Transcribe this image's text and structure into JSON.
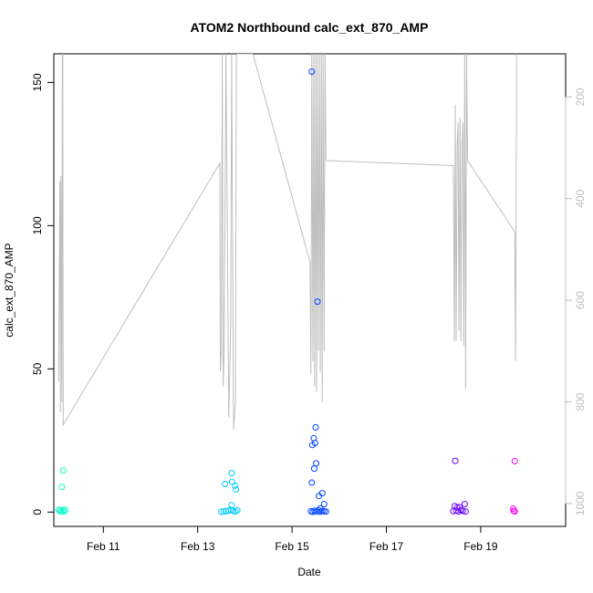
{
  "chart_data": {
    "type": "scatter",
    "title": "ATOM2 Northbound calc_ext_870_AMP",
    "xlabel": "Date",
    "ylabel": "calc_ext_870_AMP",
    "x_unit": "days in February",
    "xlim": [
      9.95,
      20.8
    ],
    "ylim": [
      -5,
      160
    ],
    "x_ticks": [
      {
        "v": 11,
        "label": "Feb 11"
      },
      {
        "v": 13,
        "label": "Feb 13"
      },
      {
        "v": 15,
        "label": "Feb 15"
      },
      {
        "v": 17,
        "label": "Feb 17"
      },
      {
        "v": 19,
        "label": "Feb 19"
      }
    ],
    "y_ticks": [
      0,
      50,
      100,
      150
    ],
    "y2_axis": {
      "label": "",
      "ticks": [
        200,
        400,
        600,
        800,
        1000
      ],
      "reversed": true,
      "lim": [
        115,
        1045
      ],
      "color": "#bebebe"
    },
    "points": [
      {
        "x": 10.15,
        "y": 14.5,
        "color": "#00ffcc"
      },
      {
        "x": 10.12,
        "y": 8.8,
        "color": "#00ffcc"
      },
      {
        "x": 10.05,
        "y": 0.8,
        "color": "#00ffcc"
      },
      {
        "x": 10.08,
        "y": 0.3,
        "color": "#00ffcc"
      },
      {
        "x": 10.1,
        "y": 0.6,
        "color": "#00ffcc"
      },
      {
        "x": 10.14,
        "y": 0.2,
        "color": "#00ffcc"
      },
      {
        "x": 10.17,
        "y": 0.9,
        "color": "#00ffcc"
      },
      {
        "x": 10.19,
        "y": 0.4,
        "color": "#00ffcc"
      },
      {
        "x": 13.72,
        "y": 13.6,
        "color": "#00ccff"
      },
      {
        "x": 13.58,
        "y": 9.8,
        "color": "#00ccff"
      },
      {
        "x": 13.73,
        "y": 10.5,
        "color": "#00ccff"
      },
      {
        "x": 13.79,
        "y": 9.2,
        "color": "#00ccff"
      },
      {
        "x": 13.81,
        "y": 7.9,
        "color": "#00ccff"
      },
      {
        "x": 13.72,
        "y": 2.4,
        "color": "#00ccff"
      },
      {
        "x": 13.5,
        "y": 0.1,
        "color": "#00ccff"
      },
      {
        "x": 13.55,
        "y": 0.2,
        "color": "#00ccff"
      },
      {
        "x": 13.6,
        "y": 0.3,
        "color": "#00ccff"
      },
      {
        "x": 13.65,
        "y": 0.5,
        "color": "#00ccff"
      },
      {
        "x": 13.7,
        "y": 0.8,
        "color": "#00ccff"
      },
      {
        "x": 13.75,
        "y": 0.4,
        "color": "#00ccff"
      },
      {
        "x": 13.8,
        "y": 0.2,
        "color": "#00ccff"
      },
      {
        "x": 13.84,
        "y": 0.6,
        "color": "#00ccff"
      },
      {
        "x": 15.42,
        "y": 153.8,
        "color": "#0044ff"
      },
      {
        "x": 15.54,
        "y": 73.5,
        "color": "#0044ff"
      },
      {
        "x": 15.5,
        "y": 29.6,
        "color": "#0044ff"
      },
      {
        "x": 15.46,
        "y": 25.8,
        "color": "#0044ff"
      },
      {
        "x": 15.49,
        "y": 24.1,
        "color": "#0044ff"
      },
      {
        "x": 15.43,
        "y": 23.4,
        "color": "#0044ff"
      },
      {
        "x": 15.51,
        "y": 17.0,
        "color": "#0044ff"
      },
      {
        "x": 15.47,
        "y": 15.2,
        "color": "#0044ff"
      },
      {
        "x": 15.42,
        "y": 10.3,
        "color": "#0044ff"
      },
      {
        "x": 15.64,
        "y": 6.6,
        "color": "#0044ff"
      },
      {
        "x": 15.57,
        "y": 5.6,
        "color": "#0044ff"
      },
      {
        "x": 15.68,
        "y": 2.8,
        "color": "#0044ff"
      },
      {
        "x": 15.6,
        "y": 1.3,
        "color": "#0044ff"
      },
      {
        "x": 15.4,
        "y": 0.3,
        "color": "#0044ff"
      },
      {
        "x": 15.44,
        "y": 0.1,
        "color": "#0044ff"
      },
      {
        "x": 15.48,
        "y": 0.5,
        "color": "#0044ff"
      },
      {
        "x": 15.52,
        "y": 0.2,
        "color": "#0044ff"
      },
      {
        "x": 15.56,
        "y": 0.6,
        "color": "#0044ff"
      },
      {
        "x": 15.6,
        "y": 0.1,
        "color": "#0044ff"
      },
      {
        "x": 15.64,
        "y": 0.4,
        "color": "#0044ff"
      },
      {
        "x": 15.68,
        "y": 0.3,
        "color": "#0044ff"
      },
      {
        "x": 15.72,
        "y": 0.2,
        "color": "#0044ff"
      },
      {
        "x": 18.46,
        "y": 17.9,
        "color": "#6600ff"
      },
      {
        "x": 18.66,
        "y": 2.8,
        "color": "#6600ff"
      },
      {
        "x": 18.45,
        "y": 2.1,
        "color": "#6600ff"
      },
      {
        "x": 18.55,
        "y": 1.8,
        "color": "#6600ff"
      },
      {
        "x": 18.5,
        "y": 1.6,
        "color": "#6600ff"
      },
      {
        "x": 18.42,
        "y": 0.3,
        "color": "#6600ff"
      },
      {
        "x": 18.48,
        "y": 0.5,
        "color": "#6600ff"
      },
      {
        "x": 18.53,
        "y": 0.2,
        "color": "#6600ff"
      },
      {
        "x": 18.58,
        "y": 0.7,
        "color": "#6600ff"
      },
      {
        "x": 18.62,
        "y": 0.4,
        "color": "#6600ff"
      },
      {
        "x": 18.68,
        "y": 0.2,
        "color": "#6600ff"
      },
      {
        "x": 19.72,
        "y": 17.8,
        "color": "#ff00ff"
      },
      {
        "x": 19.69,
        "y": 1.2,
        "color": "#ff00ff"
      },
      {
        "x": 19.7,
        "y": 0.4,
        "color": "#ff00ff"
      },
      {
        "x": 19.72,
        "y": 0.2,
        "color": "#ff00ff"
      }
    ],
    "secondary_line": {
      "color": "#bebebe",
      "x": [
        10.05,
        10.08,
        10.09,
        10.1,
        10.12,
        10.13,
        10.14,
        10.15,
        13.47,
        13.48,
        13.5,
        13.52,
        13.54,
        13.56,
        13.6,
        13.66,
        13.7,
        13.72,
        13.76,
        13.8,
        13.82,
        13.84,
        14.17,
        15.38,
        15.4,
        15.42,
        15.44,
        15.46,
        15.48,
        15.5,
        15.52,
        15.54,
        15.56,
        15.58,
        15.6,
        15.62,
        15.64,
        15.66,
        15.68,
        15.7,
        15.72,
        18.42,
        18.44,
        18.46,
        18.48,
        18.5,
        18.52,
        18.54,
        18.56,
        18.58,
        18.6,
        18.62,
        18.64,
        18.66,
        18.68,
        18.7,
        18.72,
        19.72,
        19.74,
        19.76
      ],
      "y": [
        760,
        365,
        820,
        355,
        800,
        115,
        115,
        845,
        330,
        740,
        700,
        115,
        770,
        700,
        115,
        830,
        650,
        115,
        855,
        800,
        115,
        115,
        115,
        525,
        745,
        115,
        720,
        115,
        770,
        115,
        780,
        115,
        700,
        115,
        740,
        115,
        800,
        115,
        700,
        115,
        325,
        335,
        680,
        215,
        680,
        300,
        250,
        660,
        240,
        680,
        300,
        250,
        690,
        115,
        775,
        115,
        325,
        465,
        720,
        115
      ]
    }
  }
}
